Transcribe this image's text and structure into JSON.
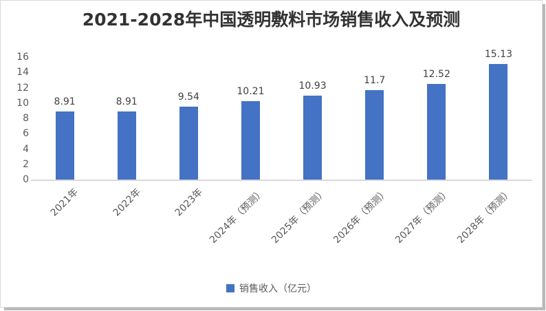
{
  "chart_data": {
    "type": "bar",
    "title": "2021-2028年中国透明敷料市场销售收入及预测",
    "categories": [
      "2021年",
      "2022年",
      "2023年",
      "2024年（预测）",
      "2025年（预测）",
      "2026年（预测）",
      "2027年（预测）",
      "2028年（预测）"
    ],
    "series": [
      {
        "name": "销售收入（亿元）",
        "values": [
          8.91,
          8.91,
          9.54,
          10.21,
          10.93,
          11.7,
          12.52,
          15.13
        ]
      }
    ],
    "data_labels": [
      "8.91",
      "8.91",
      "9.54",
      "10.21",
      "10.93",
      "11.7",
      "12.52",
      "15.13"
    ],
    "xlabel": "",
    "ylabel": "",
    "ylim": [
      0,
      16
    ],
    "yticks": [
      0,
      2,
      4,
      6,
      8,
      10,
      12,
      14,
      16
    ],
    "grid": false,
    "legend_position": "bottom",
    "colors": {
      "bar": "#4472C4",
      "title": "#333333",
      "axis_labels": "#595959",
      "data_labels": "#404040",
      "baseline": "#d9d9d9"
    }
  },
  "legend": {
    "label": "销售收入（亿元）",
    "swatch_icon": "blue-square-icon"
  }
}
